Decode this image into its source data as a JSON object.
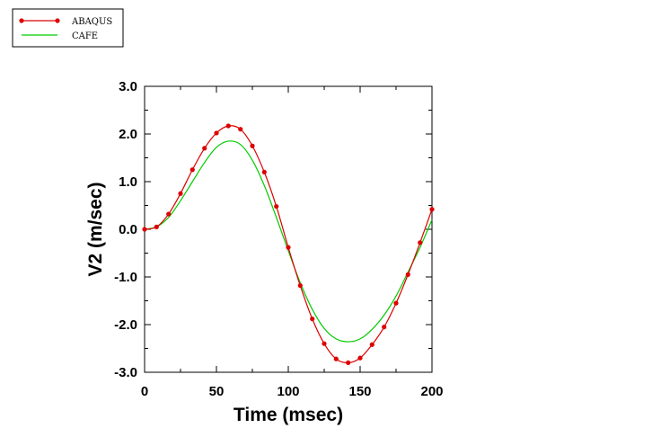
{
  "chart_data": {
    "type": "line",
    "xlabel": "Time (msec)",
    "ylabel": "V2 (m/sec)",
    "xlim": [
      0,
      200
    ],
    "ylim": [
      -3.0,
      3.0
    ],
    "x_ticks": [
      "0",
      "50",
      "100",
      "150",
      "200"
    ],
    "y_ticks": [
      "-3.0",
      "-2.0",
      "-1.0",
      "0.0",
      "1.0",
      "2.0",
      "3.0"
    ],
    "legend_position": "top-left",
    "grid": false,
    "series": [
      {
        "name": "ABAQUS",
        "color": "#dd0000",
        "marker": "circle",
        "x": [
          0,
          8.3,
          16.7,
          25,
          33.3,
          41.7,
          50,
          58.3,
          66.7,
          75,
          83.3,
          91.7,
          100,
          108.3,
          116.7,
          125,
          133.3,
          141.7,
          150,
          158.3,
          166.7,
          175,
          183.3,
          191.7,
          200
        ],
        "y": [
          0.0,
          0.05,
          0.32,
          0.75,
          1.25,
          1.7,
          2.02,
          2.17,
          2.1,
          1.75,
          1.2,
          0.48,
          -0.38,
          -1.18,
          -1.88,
          -2.4,
          -2.72,
          -2.8,
          -2.7,
          -2.42,
          -2.05,
          -1.55,
          -0.95,
          -0.28,
          0.42
        ]
      },
      {
        "name": "CAFE",
        "color": "#00cc00",
        "marker": "none",
        "x": [
          0,
          8.3,
          16.7,
          25,
          33.3,
          41.7,
          50,
          58.3,
          66.7,
          75,
          83.3,
          91.7,
          100,
          108.3,
          116.7,
          125,
          133.3,
          141.7,
          150,
          158.3,
          166.7,
          175,
          183.3,
          191.7,
          200
        ],
        "y": [
          0.0,
          0.05,
          0.25,
          0.6,
          1.0,
          1.4,
          1.72,
          1.85,
          1.78,
          1.45,
          0.92,
          0.25,
          -0.45,
          -1.12,
          -1.68,
          -2.08,
          -2.3,
          -2.36,
          -2.3,
          -2.1,
          -1.8,
          -1.4,
          -0.9,
          -0.38,
          0.2
        ]
      }
    ]
  }
}
